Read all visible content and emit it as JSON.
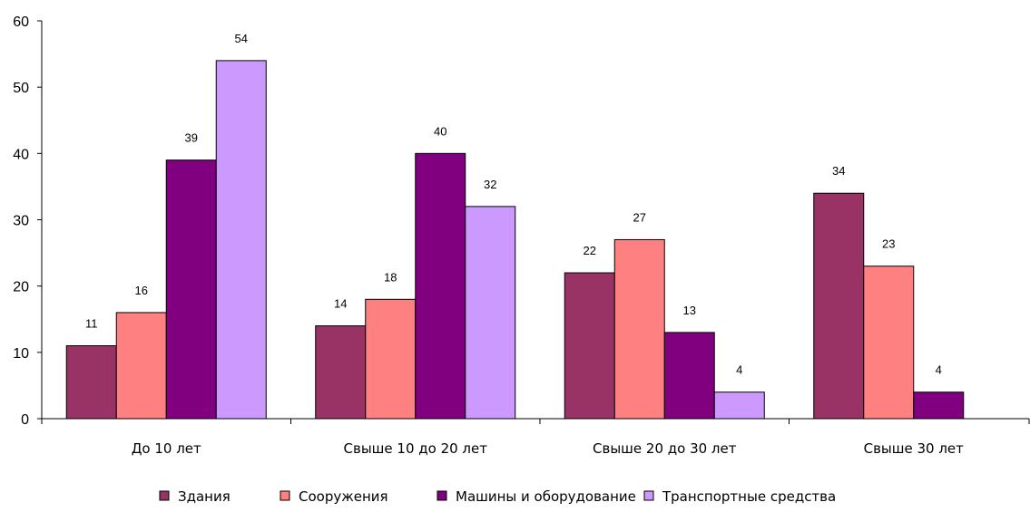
{
  "chart_data": {
    "type": "bar",
    "categories": [
      "До 10 лет",
      "Свыше 10 до 20 лет",
      "Свыше 20 до 30 лет",
      "Свыше 30 лет"
    ],
    "series": [
      {
        "name": "Здания",
        "color": "#993366",
        "values": [
          11,
          14,
          22,
          34
        ]
      },
      {
        "name": "Сооружения",
        "color": "#FF8080",
        "values": [
          16,
          18,
          27,
          23
        ]
      },
      {
        "name": "Машины и оборудование",
        "color": "#800080",
        "values": [
          39,
          40,
          13,
          4
        ]
      },
      {
        "name": "Транспортные средства",
        "color": "#CC99FF",
        "values": [
          54,
          32,
          4,
          null
        ]
      }
    ],
    "yticks": [
      "0",
      "10",
      "20",
      "30",
      "40",
      "50",
      "60"
    ],
    "ylim": [
      0,
      60
    ],
    "title": "",
    "xlabel": "",
    "ylabel": "",
    "legend_position": "bottom",
    "grid": false
  }
}
